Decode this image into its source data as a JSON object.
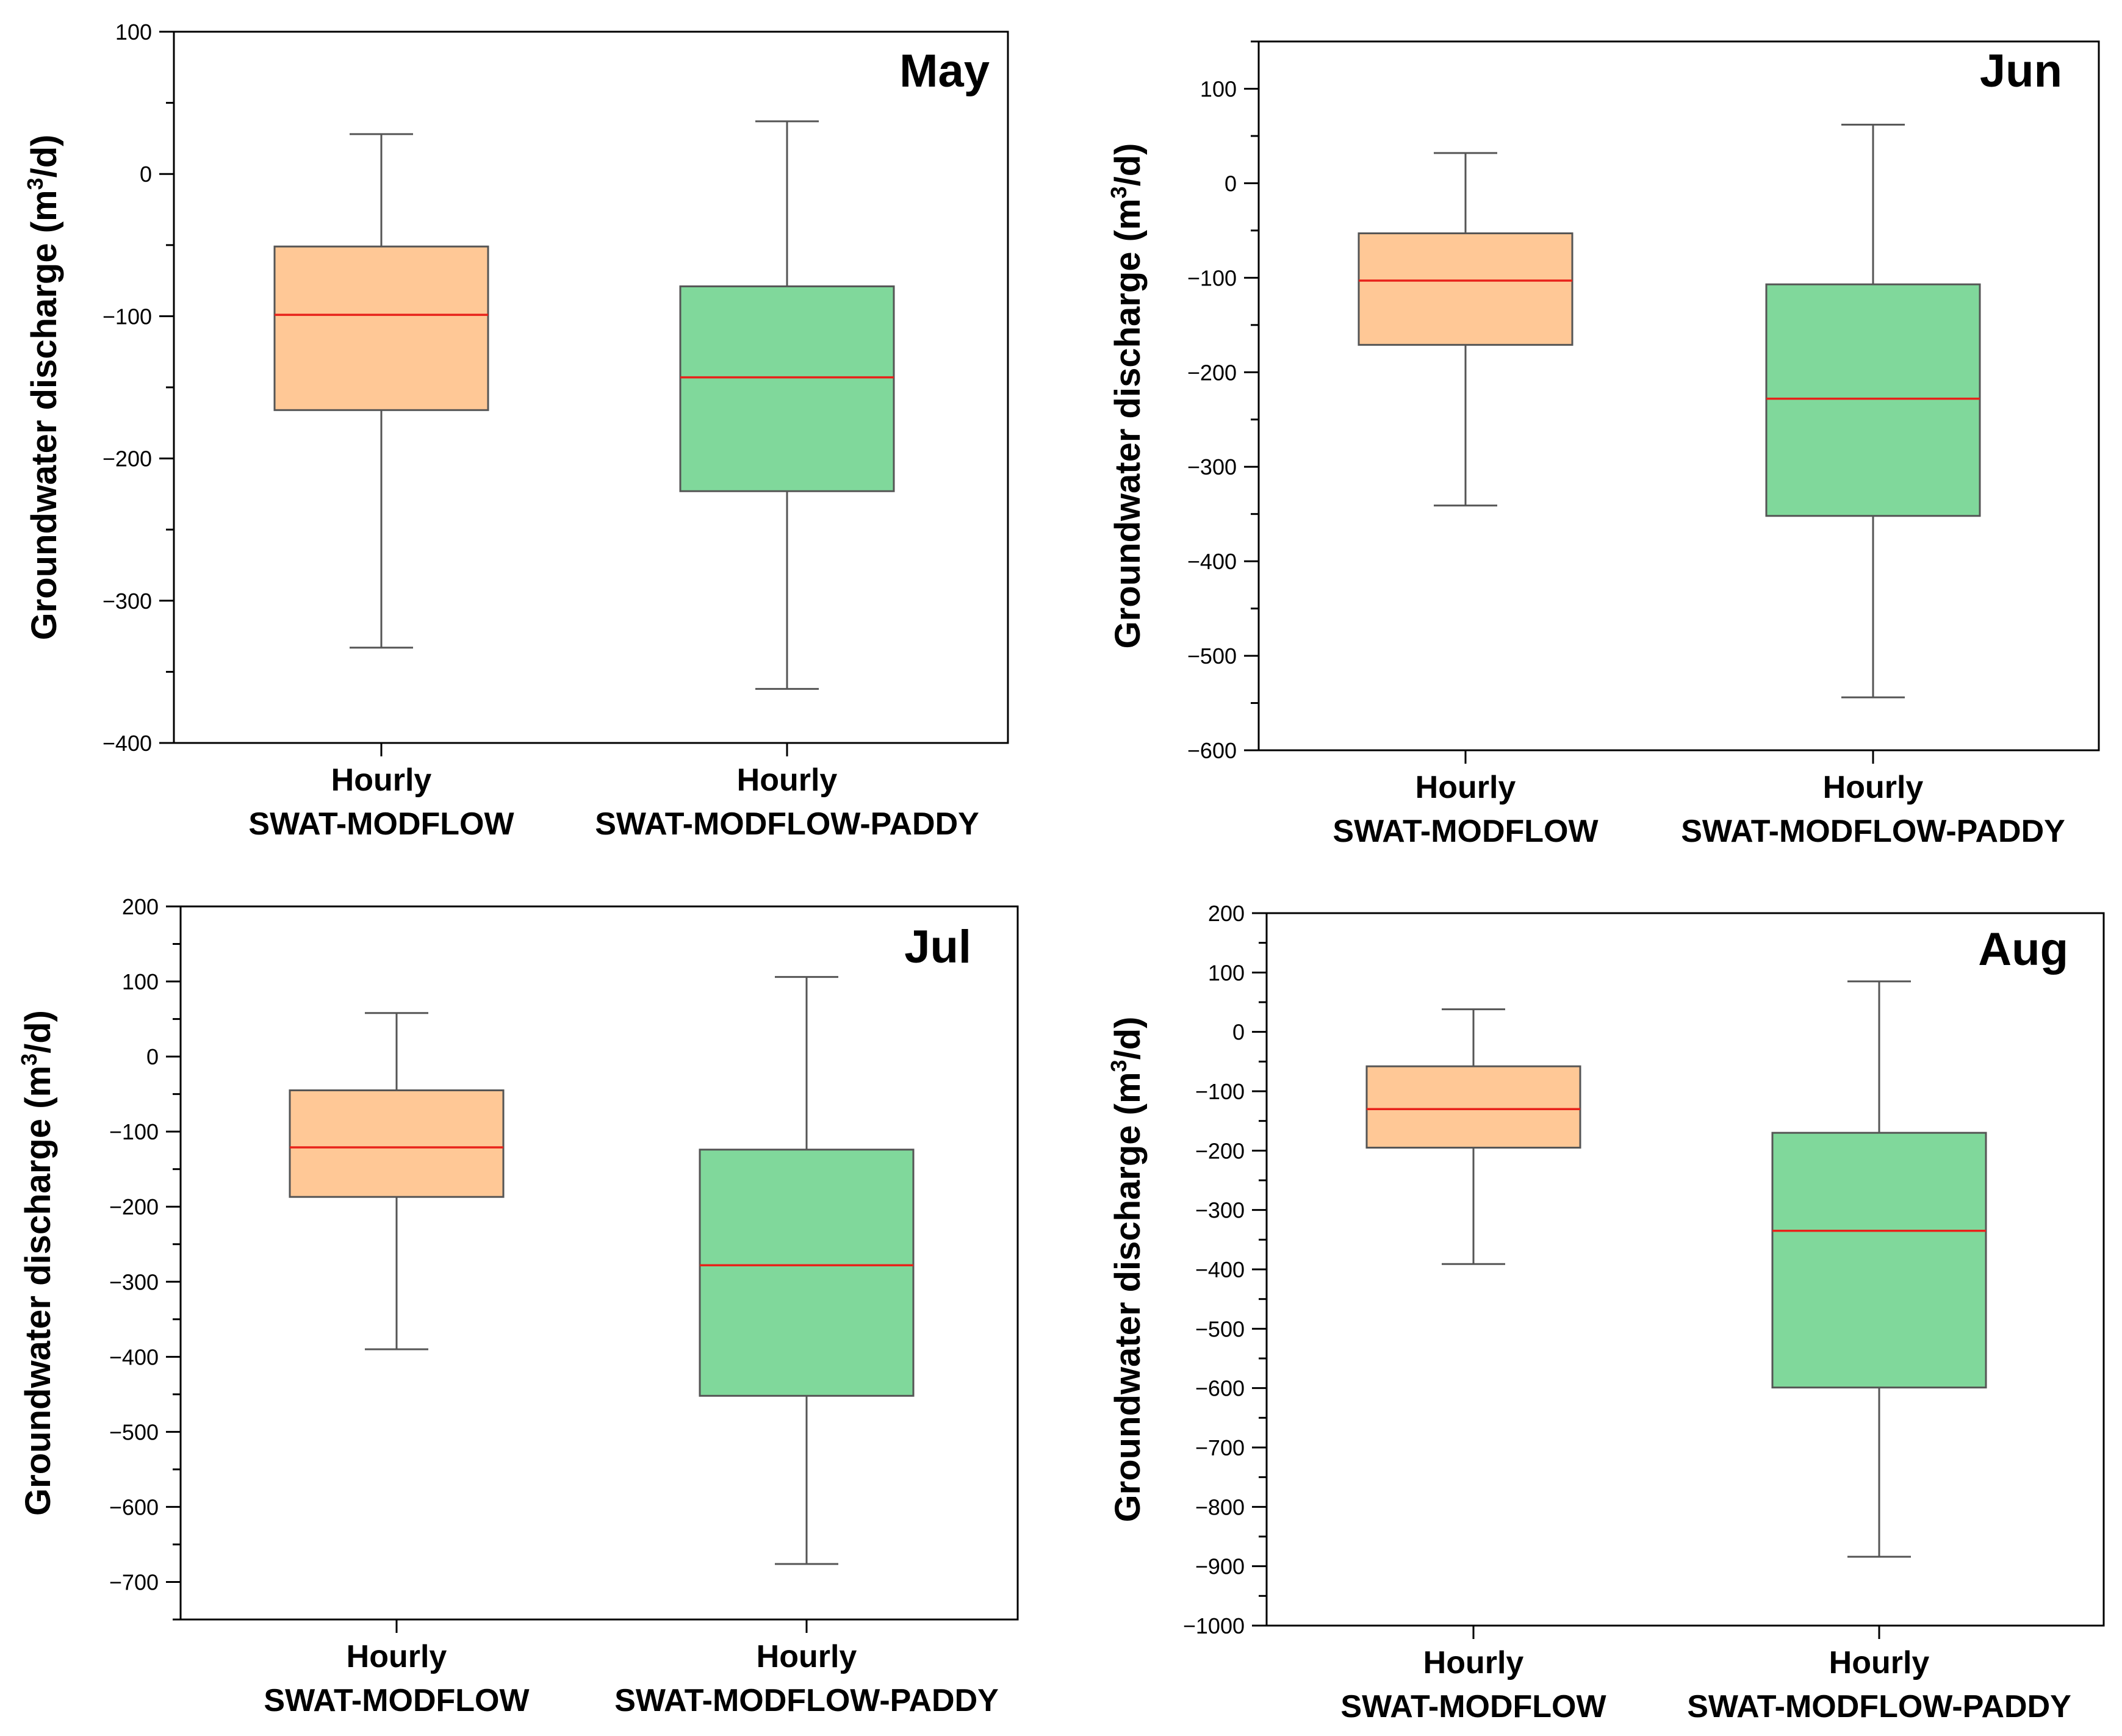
{
  "colors": {
    "swat_modflow_box": "#FFC896",
    "swat_modflow_paddy_box": "#80D89B",
    "median_line": "#E8221A",
    "box_outline": "#555555",
    "axis": "#000000"
  },
  "chart_data": [
    {
      "type": "box",
      "title": "May",
      "ylabel_main": "Groundwater discharge (m",
      "ylabel_sup": "3",
      "ylabel_tail": "/d)",
      "ylim": [
        -400,
        100
      ],
      "yticks": [
        100,
        0,
        -100,
        -200,
        -300,
        -400
      ],
      "y_minor_step": 50,
      "categories": [
        {
          "line1": "Hourly",
          "line2": "SWAT-MODFLOW"
        },
        {
          "line1": "Hourly",
          "line2": "SWAT-MODFLOW-PADDY"
        }
      ],
      "boxes": [
        {
          "name": "Hourly SWAT-MODFLOW",
          "whisker_low": -333,
          "q1": -166,
          "median": -99,
          "q3": -51,
          "whisker_high": 28
        },
        {
          "name": "Hourly SWAT-MODFLOW-PADDY",
          "whisker_low": -362,
          "q1": -223,
          "median": -143,
          "q3": -79,
          "whisker_high": 37
        }
      ]
    },
    {
      "type": "box",
      "title": "Jun",
      "ylabel_main": "Groundwater discharge (m",
      "ylabel_sup": "3",
      "ylabel_tail": "/d)",
      "ylim": [
        -600,
        150
      ],
      "yticks": [
        100,
        0,
        -100,
        -200,
        -300,
        -400,
        -500,
        -600
      ],
      "y_minor_step": 50,
      "categories": [
        {
          "line1": "Hourly",
          "line2": "SWAT-MODFLOW"
        },
        {
          "line1": "Hourly",
          "line2": "SWAT-MODFLOW-PADDY"
        }
      ],
      "boxes": [
        {
          "name": "Hourly SWAT-MODFLOW",
          "whisker_low": -341,
          "q1": -171,
          "median": -103,
          "q3": -53,
          "whisker_high": 32
        },
        {
          "name": "Hourly SWAT-MODFLOW-PADDY",
          "whisker_low": -544,
          "q1": -352,
          "median": -228,
          "q3": -107,
          "whisker_high": 62
        }
      ]
    },
    {
      "type": "box",
      "title": "Jul",
      "ylabel_main": "Groundwater discharge (m",
      "ylabel_sup": "3",
      "ylabel_tail": "/d)",
      "ylim": [
        -750,
        200
      ],
      "yticks": [
        200,
        100,
        0,
        -100,
        -200,
        -300,
        -400,
        -500,
        -600,
        -700
      ],
      "y_minor_step": 50,
      "categories": [
        {
          "line1": "Hourly",
          "line2": "SWAT-MODFLOW"
        },
        {
          "line1": "Hourly",
          "line2": "SWAT-MODFLOW-PADDY"
        }
      ],
      "boxes": [
        {
          "name": "Hourly SWAT-MODFLOW",
          "whisker_low": -390,
          "q1": -187,
          "median": -121,
          "q3": -45,
          "whisker_high": 58
        },
        {
          "name": "Hourly SWAT-MODFLOW-PADDY",
          "whisker_low": -676,
          "q1": -452,
          "median": -278,
          "q3": -124,
          "whisker_high": 106
        }
      ]
    },
    {
      "type": "box",
      "title": "Aug",
      "ylabel_main": "Groundwater discharge (m",
      "ylabel_sup": "3",
      "ylabel_tail": "/d)",
      "ylim": [
        -1000,
        200
      ],
      "yticks": [
        200,
        100,
        0,
        -100,
        -200,
        -300,
        -400,
        -500,
        -600,
        -700,
        -800,
        -900,
        -1000
      ],
      "y_minor_step": 50,
      "categories": [
        {
          "line1": "Hourly",
          "line2": "SWAT-MODFLOW"
        },
        {
          "line1": "Hourly",
          "line2": "SWAT-MODFLOW-PADDY"
        }
      ],
      "boxes": [
        {
          "name": "Hourly SWAT-MODFLOW",
          "whisker_low": -391,
          "q1": -195,
          "median": -130,
          "q3": -58,
          "whisker_high": 38
        },
        {
          "name": "Hourly SWAT-MODFLOW-PADDY",
          "whisker_low": -884,
          "q1": -599,
          "median": -335,
          "q3": -170,
          "whisker_high": 85
        }
      ]
    }
  ]
}
